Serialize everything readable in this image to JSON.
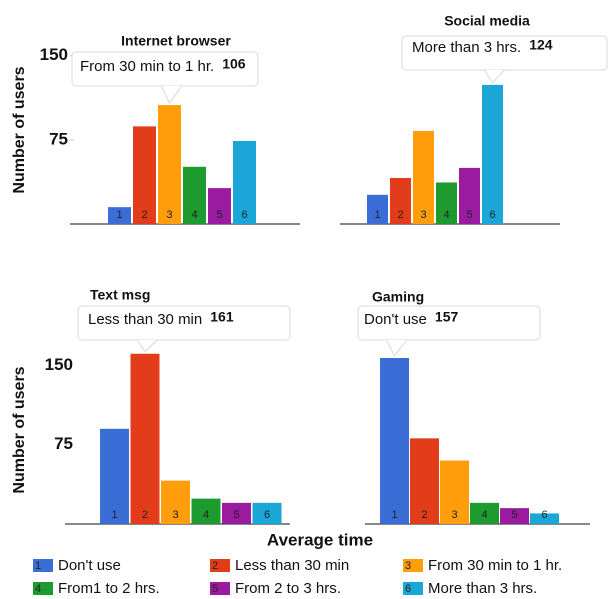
{
  "legend": {
    "categories": [
      "Don't use",
      "Less than 30 min",
      "From 30 min to 1 hr.",
      "From1 to 2 hrs.",
      "From 2 to 3 hrs.",
      "More than 3 hrs."
    ],
    "labels": [
      "1",
      "2",
      "3",
      "4",
      "5",
      "6"
    ],
    "colors": [
      "#3a6ed6",
      "#e23c1a",
      "#ff9e0a",
      "#1e9b2f",
      "#9a1aa0",
      "#1aa6d6"
    ]
  },
  "xlabel": "Average time",
  "chart_data": [
    {
      "type": "bar",
      "title": "Internet browser",
      "ylabel": "Number of users",
      "values": [
        15,
        87,
        106,
        51,
        32,
        74
      ],
      "ylim": [
        0,
        164
      ],
      "yticks": [
        75,
        150
      ]
    },
    {
      "type": "bar",
      "title": "Social media",
      "values": [
        26,
        41,
        83,
        37,
        50,
        124
      ],
      "ylim": [
        0,
        164
      ]
    },
    {
      "type": "bar",
      "title": "Text msg",
      "ylabel": "Number of users",
      "values": [
        90,
        161,
        41,
        24,
        20,
        20
      ],
      "ylim": [
        0,
        174
      ],
      "yticks": [
        75,
        150
      ]
    },
    {
      "type": "bar",
      "title": "Gaming",
      "values": [
        157,
        81,
        60,
        20,
        15,
        10
      ],
      "ylim": [
        0,
        174
      ]
    }
  ]
}
